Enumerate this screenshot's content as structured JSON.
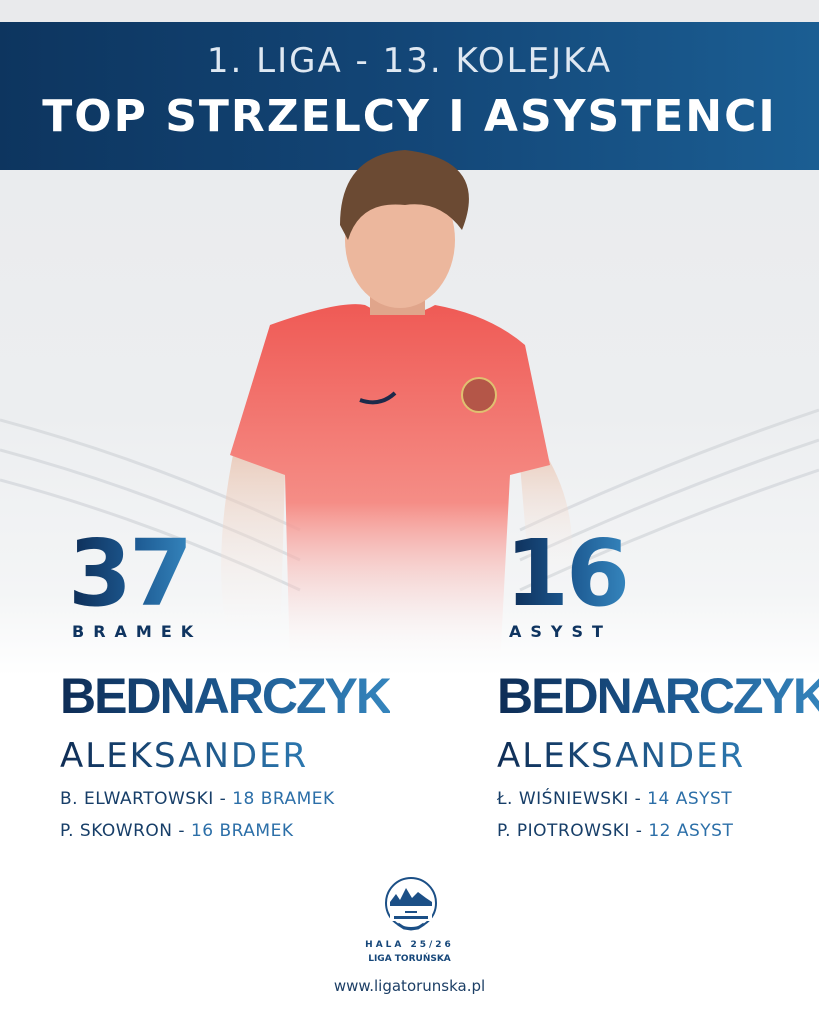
{
  "header": {
    "subtitle": "1. LIGA - 13. KOLEJKA",
    "title": "TOP STRZELCY I ASYSTENCI"
  },
  "scorers": {
    "count": "37",
    "unit": "BRAMEK",
    "last_name": "BEDNARCZYK",
    "first_name": "ALEKSANDER",
    "runners": [
      {
        "name": "B. ELWARTOWSKI - ",
        "value": "18 BRAMEK"
      },
      {
        "name": "P. SKOWRON - ",
        "value": "16 BRAMEK"
      }
    ]
  },
  "assists": {
    "count": "16",
    "unit": "ASYST",
    "last_name": "BEDNARCZYK",
    "first_name": "ALEKSANDER",
    "runners": [
      {
        "name": "Ł. WIŚNIEWSKI - ",
        "value": "14 ASYST"
      },
      {
        "name": "P. PIOTROWSKI - ",
        "value": "12 ASYST"
      }
    ]
  },
  "footer": {
    "logo_text": "LIGA TORUŃSKA",
    "season": "HALA 25/26",
    "league": "LIGA TORUŃSKA",
    "url": "www.ligatorunska.pl"
  },
  "colors": {
    "brand_dark": "#0d355f",
    "brand_light": "#3585bd",
    "shirt": "#f0625a"
  }
}
